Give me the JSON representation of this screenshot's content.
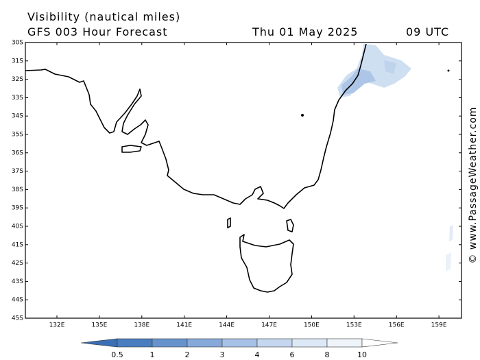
{
  "header": {
    "title": "Visibility (nautical miles)",
    "subtitle": "GFS 003 Hour Forecast",
    "date": "Thu 01 May 2025",
    "time": "09 UTC"
  },
  "map": {
    "lat_labels": [
      "30S",
      "31S",
      "32S",
      "33S",
      "34S",
      "35S",
      "36S",
      "37S",
      "38S",
      "39S",
      "40S",
      "41S",
      "42S",
      "43S",
      "44S",
      "45S"
    ],
    "lon_labels": [
      "132E",
      "135E",
      "138E",
      "141E",
      "144E",
      "147E",
      "150E",
      "153E",
      "156E",
      "159E"
    ]
  },
  "legend": {
    "labels": [
      "0.5",
      "1",
      "2",
      "3",
      "4",
      "6",
      "8",
      "10"
    ]
  },
  "credit": "© www.PassageWeather.com"
}
